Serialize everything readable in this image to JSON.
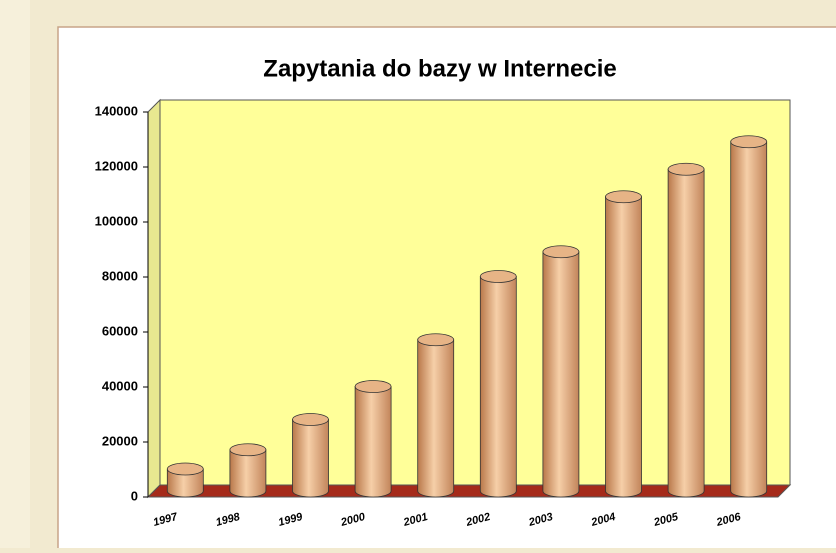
{
  "chart_data": {
    "type": "bar",
    "title": "Zapytania do bazy w Internecie",
    "categories": [
      "1997",
      "1998",
      "1999",
      "2000",
      "2001",
      "2002",
      "2003",
      "2004",
      "2005",
      "2006"
    ],
    "values": [
      8000,
      15000,
      26000,
      38000,
      55000,
      78000,
      87000,
      107000,
      117000,
      127000
    ],
    "color": "#e0a878",
    "ylim": [
      0,
      140000
    ],
    "yticks": [
      0,
      20000,
      40000,
      60000,
      80000,
      100000,
      120000,
      140000
    ],
    "grid": false
  }
}
